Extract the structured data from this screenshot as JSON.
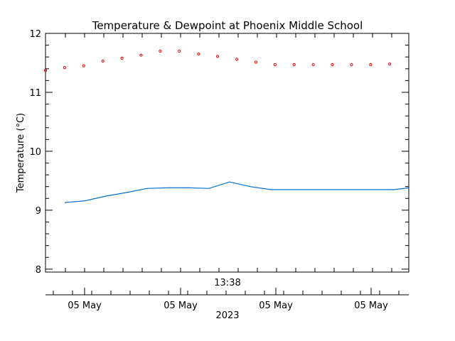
{
  "chart_data": {
    "type": "line",
    "title": "Temperature & Dewpoint at Phoenix Middle School",
    "ylabel": "Temperature (°C)",
    "ylim": [
      7.95,
      12.0
    ],
    "yticks": [
      8,
      9,
      10,
      11,
      12
    ],
    "time_label": "13:38",
    "date_labels": [
      "05 May",
      "05 May",
      "05 May",
      "05 May"
    ],
    "year_label": "2023",
    "series": [
      {
        "style": "points",
        "color": "#ff0000",
        "values": [
          11.37,
          11.42,
          11.45,
          11.53,
          11.58,
          11.63,
          11.7,
          11.7,
          11.65,
          11.61,
          11.56,
          11.51,
          11.47,
          11.47,
          11.47,
          11.47,
          11.47,
          11.47,
          11.48
        ]
      },
      {
        "style": "line",
        "color": "#0070d0",
        "values": [
          9.13,
          9.16,
          9.24,
          9.3,
          9.37,
          9.38,
          9.38,
          9.37,
          9.48,
          9.4,
          9.35,
          9.35,
          9.35,
          9.35,
          9.35,
          9.35,
          9.35,
          9.38
        ]
      }
    ]
  }
}
